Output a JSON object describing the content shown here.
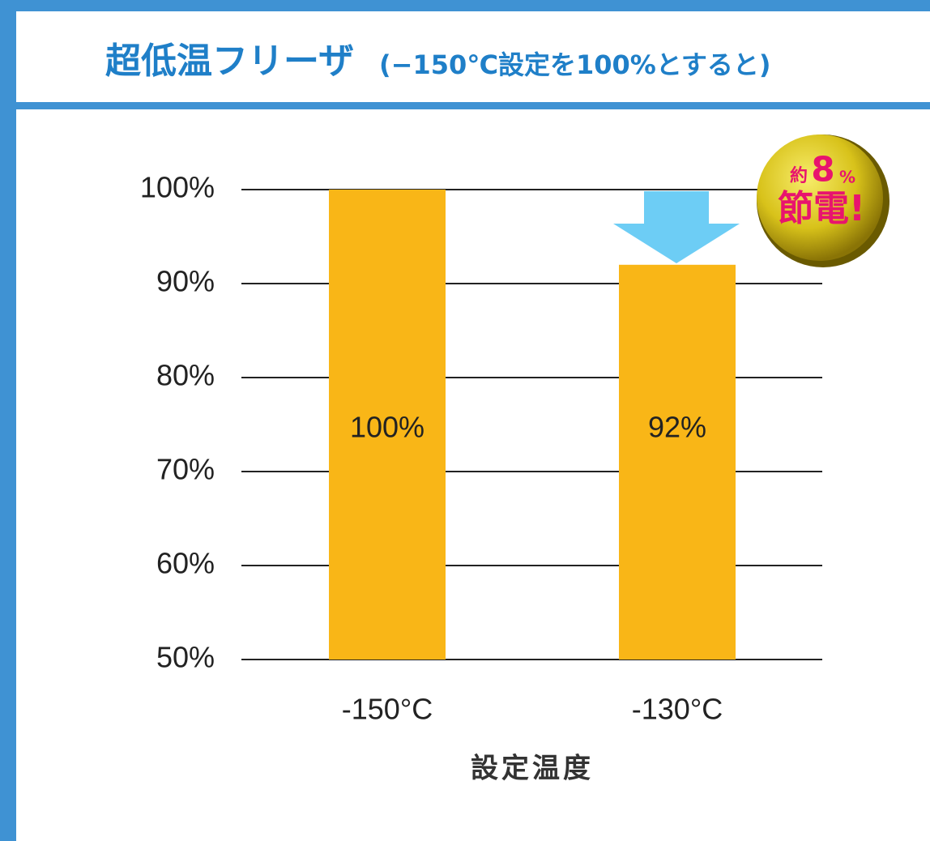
{
  "chart_data": {
    "type": "bar",
    "title": "超低温フリーザ",
    "subtitle": "(−150℃設定を100%とすると)",
    "categories": [
      "-150°C",
      "-130°C"
    ],
    "values": [
      100,
      92
    ],
    "value_labels": [
      "100%",
      "92%"
    ],
    "color": "#f9b617",
    "x_label": "設定温度",
    "ylim": [
      50,
      100
    ],
    "yticks": [
      {
        "value": 50,
        "label": "50%"
      },
      {
        "value": 60,
        "label": "60%"
      },
      {
        "value": 70,
        "label": "70%"
      },
      {
        "value": 80,
        "label": "80%"
      },
      {
        "value": 90,
        "label": "90%"
      },
      {
        "value": 100,
        "label": "100%"
      }
    ],
    "grid": true,
    "annotation": {
      "about": "約",
      "amount": 8,
      "unit": "%",
      "label": "節電!"
    }
  }
}
